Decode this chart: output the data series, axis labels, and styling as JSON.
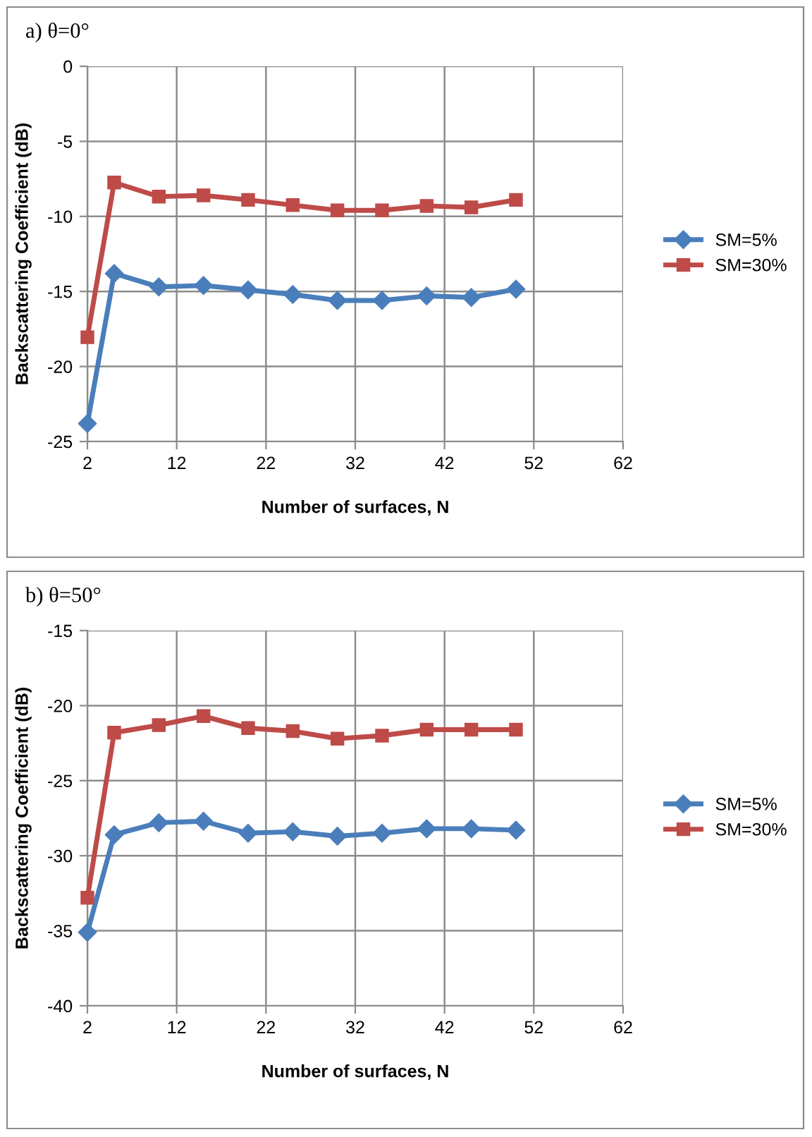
{
  "chart_data": [
    {
      "type": "line",
      "title": "a) θ=0°",
      "xlabel": "Number of surfaces, N",
      "ylabel": "Backscattering Coefficient (dB)",
      "x": [
        2,
        5,
        10,
        15,
        20,
        25,
        30,
        35,
        40,
        45,
        50
      ],
      "xlim": [
        2,
        62
      ],
      "xticks": [
        2,
        12,
        22,
        32,
        42,
        52,
        62
      ],
      "ylim": [
        -25,
        0
      ],
      "yticks": [
        -25,
        -20,
        -15,
        -10,
        -5,
        0
      ],
      "grid": true,
      "legend": "right",
      "line_style": "solid",
      "series": [
        {
          "name": "SM=5%",
          "color": "#4a7ebb",
          "marker": "diamond",
          "values": [
            -23.8,
            -13.8,
            -14.7,
            -14.6,
            -14.9,
            -15.2,
            -15.6,
            -15.6,
            -15.3,
            -15.4,
            -14.85
          ]
        },
        {
          "name": "SM=30%",
          "color": "#be4b48",
          "marker": "square",
          "values": [
            -18.05,
            -7.74,
            -8.68,
            -8.6,
            -8.9,
            -9.25,
            -9.6,
            -9.6,
            -9.3,
            -9.4,
            -8.9
          ]
        }
      ]
    },
    {
      "type": "line",
      "title": "b) θ=50°",
      "xlabel": "Number of surfaces, N",
      "ylabel": "Backscattering Coefficient (dB)",
      "x": [
        2,
        5,
        10,
        15,
        20,
        25,
        30,
        35,
        40,
        45,
        50
      ],
      "xlim": [
        2,
        62
      ],
      "xticks": [
        2,
        12,
        22,
        32,
        42,
        52,
        62
      ],
      "ylim": [
        -40,
        -15
      ],
      "yticks": [
        -40,
        -35,
        -30,
        -25,
        -20,
        -15
      ],
      "grid": true,
      "legend": "right",
      "line_style": "solid",
      "series": [
        {
          "name": "SM=5%",
          "color": "#4a7ebb",
          "marker": "diamond",
          "values": [
            -35.1,
            -28.6,
            -27.8,
            -27.7,
            -28.5,
            -28.4,
            -28.7,
            -28.5,
            -28.2,
            -28.2,
            -28.3
          ]
        },
        {
          "name": "SM=30%",
          "color": "#be4b48",
          "marker": "square",
          "values": [
            -32.8,
            -21.8,
            -21.3,
            -20.7,
            -21.5,
            -21.7,
            -22.2,
            -22.0,
            -21.6,
            -21.6,
            -21.6
          ]
        }
      ]
    }
  ]
}
